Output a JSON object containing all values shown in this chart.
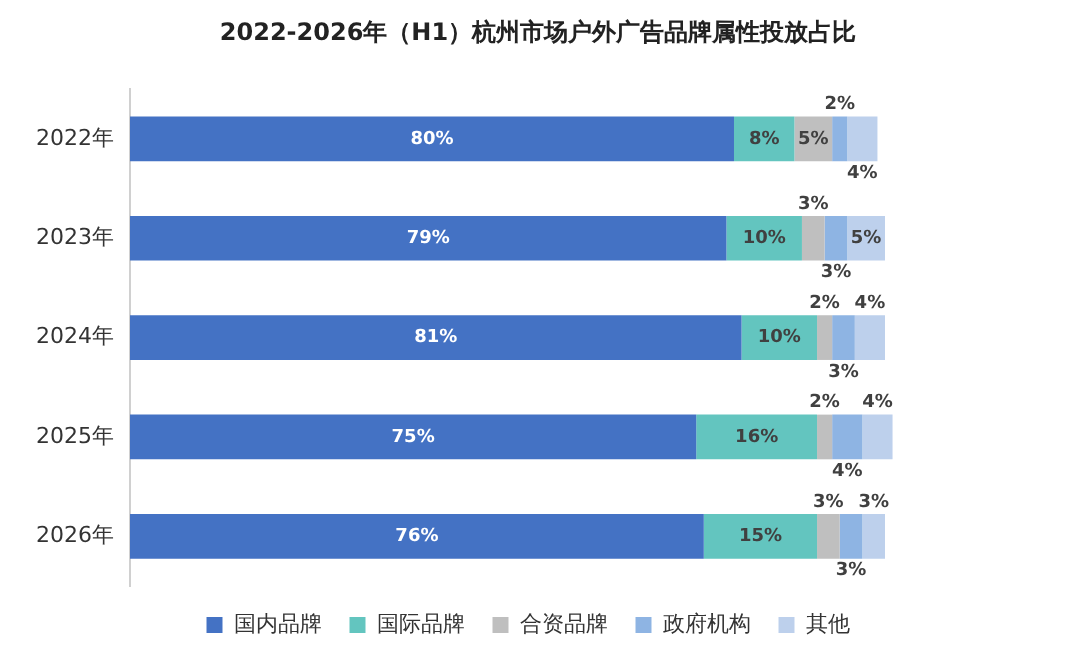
{
  "chart_data": {
    "type": "bar",
    "orientation": "horizontal",
    "stacked": true,
    "title": "2022-2026年（H1）杭州市场户外广告品牌属性投放占比",
    "categories": [
      "2022年",
      "2023年",
      "2024年",
      "2025年",
      "2026年"
    ],
    "tick_labels": "y",
    "grid": false,
    "legend": "bottom",
    "series": [
      {
        "name": "国内品牌",
        "color": "#4472c4",
        "values": [
          80,
          79,
          81,
          75,
          76
        ],
        "value_labels": [
          "80%",
          "79%",
          "81%",
          "75%",
          "76%"
        ]
      },
      {
        "name": "国际品牌",
        "color": "#63c5bf",
        "values": [
          8,
          10,
          10,
          16,
          15
        ],
        "value_labels": [
          "8%",
          "10%",
          "10%",
          "16%",
          "15%"
        ]
      },
      {
        "name": "合资品牌",
        "color": "#bfbfbf",
        "values": [
          5,
          3,
          2,
          2,
          3
        ],
        "value_labels": [
          "5%",
          "3%",
          "2%",
          "2%",
          "3%"
        ]
      },
      {
        "name": "政府机构",
        "color": "#8eb4e3",
        "values": [
          2,
          3,
          3,
          4,
          3
        ],
        "value_labels": [
          "2%",
          "3%",
          "3%",
          "4%",
          "3%"
        ]
      },
      {
        "name": "其他",
        "color": "#bdd0ec",
        "values": [
          4,
          5,
          4,
          4,
          3
        ],
        "value_labels": [
          "4%",
          "5%",
          "4%",
          "4%",
          "3%"
        ]
      }
    ]
  }
}
